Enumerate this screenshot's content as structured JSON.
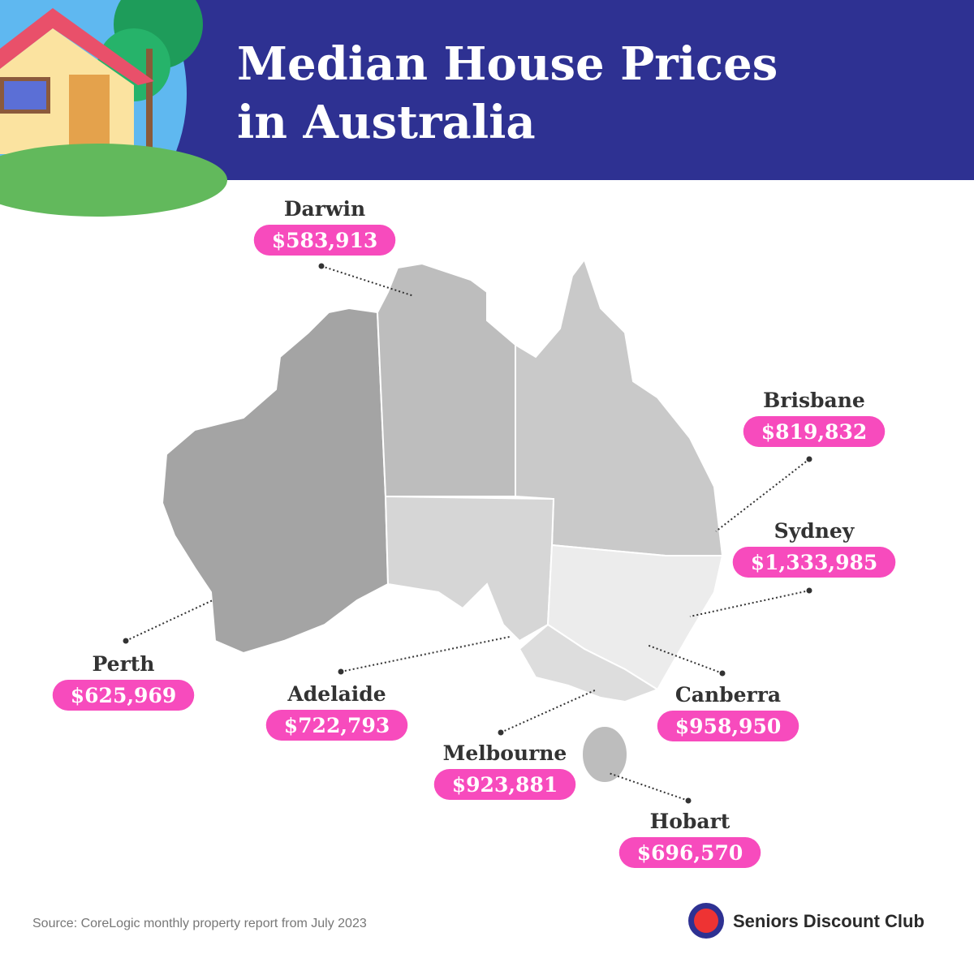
{
  "header": {
    "title_lines": [
      "Median House Prices",
      "in Australia"
    ]
  },
  "cities": [
    {
      "name": "Darwin",
      "price": "$583,913"
    },
    {
      "name": "Brisbane",
      "price": "$819,832"
    },
    {
      "name": "Sydney",
      "price": "$1,333,985"
    },
    {
      "name": "Perth",
      "price": "$625,969"
    },
    {
      "name": "Adelaide",
      "price": "$722,793"
    },
    {
      "name": "Canberra",
      "price": "$958,950"
    },
    {
      "name": "Melbourne",
      "price": "$923,881"
    },
    {
      "name": "Hobart",
      "price": "$696,570"
    }
  ],
  "source": "Source:  CoreLogic monthly property report from July 2023",
  "brand": "Seniors Discount Club"
}
